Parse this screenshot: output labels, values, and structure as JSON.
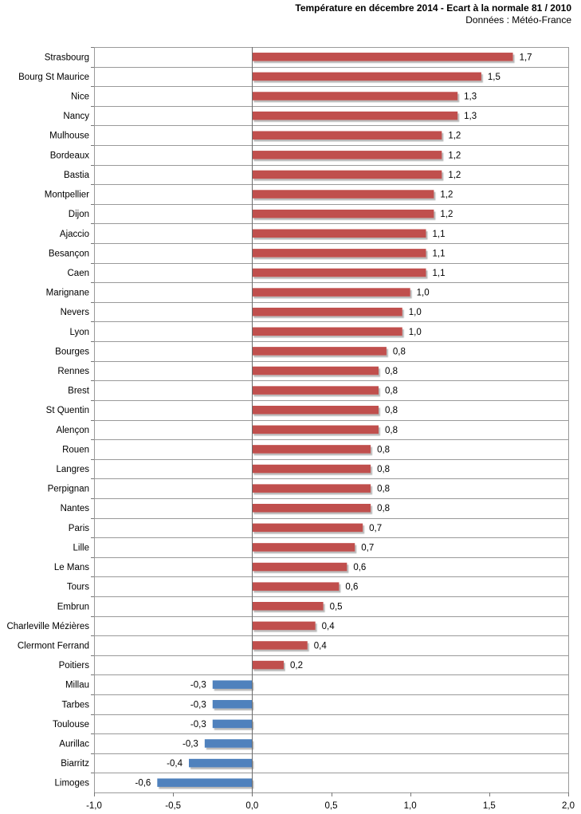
{
  "chart_data": {
    "type": "bar",
    "orientation": "horizontal",
    "title": "Température en décembre 2014 - Ecart à la normale 81 / 2010",
    "subtitle": "Données : Météo-France",
    "xlabel": "",
    "ylabel": "",
    "xlim": [
      -1.0,
      2.0
    ],
    "x_ticks": [
      -1.0,
      -0.5,
      0.0,
      0.5,
      1.0,
      1.5,
      2.0
    ],
    "x_tick_labels": [
      "-1,0",
      "-0,5",
      "0,0",
      "0,5",
      "1,0",
      "1,5",
      "2,0"
    ],
    "grid": true,
    "legend": "none",
    "positive_color": "#c0504d",
    "negative_color": "#4f81bd",
    "categories": [
      "Strasbourg",
      "Bourg St Maurice",
      "Nice",
      "Nancy",
      "Mulhouse",
      "Bordeaux",
      "Bastia",
      "Montpellier",
      "Dijon",
      "Ajaccio",
      "Besançon",
      "Caen",
      "Marignane",
      "Nevers",
      "Lyon",
      "Bourges",
      "Rennes",
      "Brest",
      "St Quentin",
      "Alençon",
      "Rouen",
      "Langres",
      "Perpignan",
      "Nantes",
      "Paris",
      "Lille",
      "Le Mans",
      "Tours",
      "Embrun",
      "Charleville Mézières",
      "Clermont Ferrand",
      "Poitiers",
      "Millau",
      "Tarbes",
      "Toulouse",
      "Aurillac",
      "Biarritz",
      "Limoges"
    ],
    "values": [
      1.65,
      1.45,
      1.3,
      1.3,
      1.2,
      1.2,
      1.2,
      1.15,
      1.15,
      1.1,
      1.1,
      1.1,
      1.0,
      0.95,
      0.95,
      0.85,
      0.8,
      0.8,
      0.8,
      0.8,
      0.75,
      0.75,
      0.75,
      0.75,
      0.7,
      0.65,
      0.6,
      0.55,
      0.45,
      0.4,
      0.35,
      0.2,
      -0.25,
      -0.25,
      -0.25,
      -0.3,
      -0.4,
      -0.6
    ],
    "data_labels": [
      "1,7",
      "1,5",
      "1,3",
      "1,3",
      "1,2",
      "1,2",
      "1,2",
      "1,2",
      "1,2",
      "1,1",
      "1,1",
      "1,1",
      "1,0",
      "1,0",
      "1,0",
      "0,8",
      "0,8",
      "0,8",
      "0,8",
      "0,8",
      "0,8",
      "0,8",
      "0,8",
      "0,8",
      "0,7",
      "0,7",
      "0,6",
      "0,6",
      "0,5",
      "0,4",
      "0,4",
      "0,2",
      "-0,3",
      "-0,3",
      "-0,3",
      "-0,3",
      "-0,4",
      "-0,6"
    ]
  }
}
